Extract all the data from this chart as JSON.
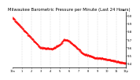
{
  "title": "Milwaukee Barometric Pressure per Minute (Last 24 Hours)",
  "title_fontsize": 3.8,
  "bg_color": "#ffffff",
  "plot_bg_color": "#ffffff",
  "grid_color": "#bbbbbb",
  "line_color": "#ff0000",
  "ylabel": "in",
  "ylabel_fontsize": 3.0,
  "ylim": [
    29.35,
    30.05
  ],
  "yticks": [
    29.4,
    29.5,
    29.6,
    29.7,
    29.8,
    29.9,
    30.0
  ],
  "ytick_fontsize": 2.8,
  "xtick_fontsize": 2.5,
  "num_points": 1440,
  "x_start": 0,
  "x_end": 1440,
  "segments": [
    [
      0,
      29.97
    ],
    [
      180,
      29.78
    ],
    [
      350,
      29.6
    ],
    [
      500,
      29.58
    ],
    [
      600,
      29.63
    ],
    [
      660,
      29.7
    ],
    [
      720,
      29.68
    ],
    [
      760,
      29.65
    ],
    [
      900,
      29.52
    ],
    [
      1050,
      29.47
    ],
    [
      1150,
      29.46
    ],
    [
      1250,
      29.44
    ],
    [
      1350,
      29.42
    ],
    [
      1440,
      29.4
    ]
  ],
  "vgrid_positions": [
    120,
    240,
    360,
    480,
    600,
    720,
    840,
    960,
    1080,
    1200,
    1320
  ],
  "xtick_positions": [
    0,
    120,
    240,
    360,
    480,
    600,
    720,
    840,
    960,
    1080,
    1200,
    1320,
    1440
  ],
  "xtick_labels": [
    "12a",
    "1",
    "2",
    "3",
    "4",
    "5",
    "6",
    "7",
    "8",
    "9",
    "10",
    "11",
    "12p"
  ],
  "marker_size": 0.7,
  "marker_every": 4,
  "noise_std": 0.004
}
